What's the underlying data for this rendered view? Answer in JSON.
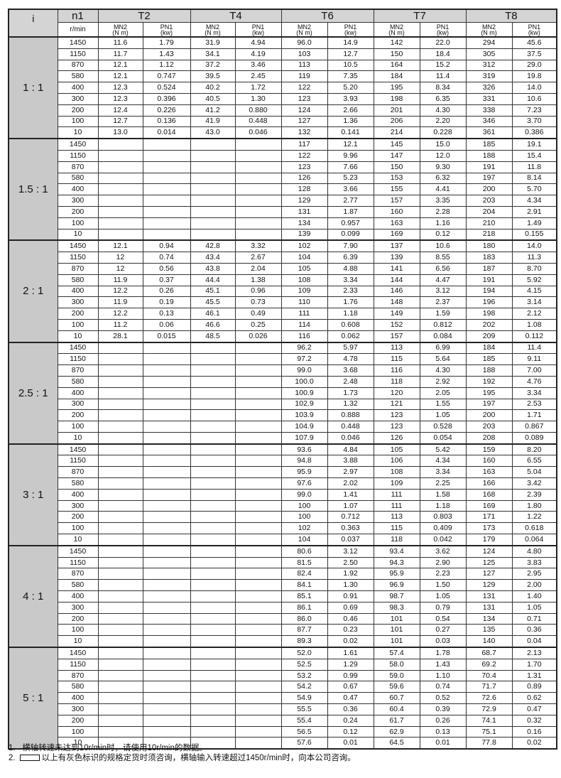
{
  "header": {
    "i_label": "i",
    "n1_label": "n1",
    "n1_unit": "r/min",
    "models": [
      "T2",
      "T4",
      "T6",
      "T7",
      "T8"
    ],
    "mn2_label": "MN2",
    "mn2_unit": "(N m)",
    "pn1_label": "PN1",
    "pn1_unit": "(kw)"
  },
  "speeds": [
    "1450",
    "1150",
    "870",
    "580",
    "400",
    "300",
    "200",
    "100",
    "10"
  ],
  "groups": [
    {
      "ratio": "1 : 1",
      "rows": [
        [
          "11.6",
          "1.79",
          "31.9",
          "4.94",
          "96.0",
          "14.9",
          "142",
          "22.0",
          "294",
          "45.6"
        ],
        [
          "11.7",
          "1.43",
          "34.1",
          "4.19",
          "103",
          "12.7",
          "150",
          "18.4",
          "305",
          "37.5"
        ],
        [
          "12.1",
          "1.12",
          "37.2",
          "3.46",
          "113",
          "10.5",
          "164",
          "15.2",
          "312",
          "29.0"
        ],
        [
          "12.1",
          "0.747",
          "39.5",
          "2.45",
          "119",
          "7.35",
          "184",
          "11.4",
          "319",
          "19.8"
        ],
        [
          "12.3",
          "0.524",
          "40.2",
          "1.72",
          "122",
          "5.20",
          "195",
          "8.34",
          "326",
          "14.0"
        ],
        [
          "12.3",
          "0.396",
          "40.5",
          "1.30",
          "123",
          "3.93",
          "198",
          "6.35",
          "331",
          "10.6"
        ],
        [
          "12.4",
          "0.226",
          "41.2",
          "0.880",
          "124",
          "2.66",
          "201",
          "4.30",
          "338",
          "7.23"
        ],
        [
          "12.7",
          "0.136",
          "41.9",
          "0.448",
          "127",
          "1.36",
          "206",
          "2.20",
          "346",
          "3.70"
        ],
        [
          "13.0",
          "0.014",
          "43.0",
          "0.046",
          "132",
          "0.141",
          "214",
          "0.228",
          "361",
          "0.386"
        ]
      ]
    },
    {
      "ratio": "1.5 : 1",
      "rows": [
        [
          "",
          "",
          "",
          "",
          "117",
          "12.1",
          "145",
          "15.0",
          "185",
          "19.1"
        ],
        [
          "",
          "",
          "",
          "",
          "122",
          "9.96",
          "147",
          "12.0",
          "188",
          "15.4"
        ],
        [
          "",
          "",
          "",
          "",
          "123",
          "7.66",
          "150",
          "9.30",
          "191",
          "11.8"
        ],
        [
          "",
          "",
          "",
          "",
          "126",
          "5.23",
          "153",
          "6.32",
          "197",
          "8.14"
        ],
        [
          "",
          "",
          "",
          "",
          "128",
          "3.66",
          "155",
          "4.41",
          "200",
          "5.70"
        ],
        [
          "",
          "",
          "",
          "",
          "129",
          "2.77",
          "157",
          "3.35",
          "203",
          "4.34"
        ],
        [
          "",
          "",
          "",
          "",
          "131",
          "1.87",
          "160",
          "2.28",
          "204",
          "2.91"
        ],
        [
          "",
          "",
          "",
          "",
          "134",
          "0.957",
          "163",
          "1.16",
          "210",
          "1.49"
        ],
        [
          "",
          "",
          "",
          "",
          "139",
          "0.099",
          "169",
          "0.12",
          "218",
          "0.155"
        ]
      ]
    },
    {
      "ratio": "2 : 1",
      "rows": [
        [
          "12.1",
          "0.94",
          "42.8",
          "3.32",
          "102",
          "7.90",
          "137",
          "10.6",
          "180",
          "14.0"
        ],
        [
          "12",
          "0.74",
          "43.4",
          "2.67",
          "104",
          "6.39",
          "139",
          "8.55",
          "183",
          "11.3"
        ],
        [
          "12",
          "0.56",
          "43.8",
          "2.04",
          "105",
          "4.88",
          "141",
          "6.56",
          "187",
          "8.70"
        ],
        [
          "11.9",
          "0.37",
          "44.4",
          "1.38",
          "108",
          "3.34",
          "144",
          "4.47",
          "191",
          "5.92"
        ],
        [
          "12.2",
          "0.26",
          "45.1",
          "0.96",
          "109",
          "2.33",
          "146",
          "3.12",
          "194",
          "4.15"
        ],
        [
          "11.9",
          "0.19",
          "45.5",
          "0.73",
          "110",
          "1.76",
          "148",
          "2.37",
          "196",
          "3.14"
        ],
        [
          "12.2",
          "0.13",
          "46.1",
          "0.49",
          "111",
          "1.18",
          "149",
          "1.59",
          "198",
          "2.12"
        ],
        [
          "11.2",
          "0.06",
          "46.6",
          "0.25",
          "114",
          "0.608",
          "152",
          "0.812",
          "202",
          "1.08"
        ],
        [
          "28.1",
          "0.015",
          "48.5",
          "0.026",
          "116",
          "0.062",
          "157",
          "0.084",
          "209",
          "0.112"
        ]
      ]
    },
    {
      "ratio": "2.5 : 1",
      "rows": [
        [
          "",
          "",
          "",
          "",
          "96.2",
          "5.97",
          "113",
          "6.99",
          "184",
          "11.4"
        ],
        [
          "",
          "",
          "",
          "",
          "97.2",
          "4.78",
          "115",
          "5.64",
          "185",
          "9.11"
        ],
        [
          "",
          "",
          "",
          "",
          "99.0",
          "3.68",
          "116",
          "4.30",
          "188",
          "7.00"
        ],
        [
          "",
          "",
          "",
          "",
          "100.0",
          "2.48",
          "118",
          "2.92",
          "192",
          "4.76"
        ],
        [
          "",
          "",
          "",
          "",
          "100.9",
          "1.73",
          "120",
          "2.05",
          "195",
          "3.34"
        ],
        [
          "",
          "",
          "",
          "",
          "102.9",
          "1.32",
          "121",
          "1.55",
          "197",
          "2.53"
        ],
        [
          "",
          "",
          "",
          "",
          "103.9",
          "0.888",
          "123",
          "1.05",
          "200",
          "1.71"
        ],
        [
          "",
          "",
          "",
          "",
          "104.9",
          "0.448",
          "123",
          "0.528",
          "203",
          "0.867"
        ],
        [
          "",
          "",
          "",
          "",
          "107.9",
          "0.046",
          "126",
          "0.054",
          "208",
          "0.089"
        ]
      ]
    },
    {
      "ratio": "3 : 1",
      "rows": [
        [
          "",
          "",
          "",
          "",
          "93.6",
          "4.84",
          "105",
          "5.42",
          "159",
          "8.20"
        ],
        [
          "",
          "",
          "",
          "",
          "94.8",
          "3.88",
          "106",
          "4.34",
          "160",
          "6.55"
        ],
        [
          "",
          "",
          "",
          "",
          "95.9",
          "2.97",
          "108",
          "3.34",
          "163",
          "5.04"
        ],
        [
          "",
          "",
          "",
          "",
          "97.6",
          "2.02",
          "109",
          "2.25",
          "166",
          "3.42"
        ],
        [
          "",
          "",
          "",
          "",
          "99.0",
          "1.41",
          "111",
          "1.58",
          "168",
          "2.39"
        ],
        [
          "",
          "",
          "",
          "",
          "100",
          "1.07",
          "111",
          "1.18",
          "169",
          "1.80"
        ],
        [
          "",
          "",
          "",
          "",
          "100",
          "0.712",
          "113",
          "0.803",
          "171",
          "1.22"
        ],
        [
          "",
          "",
          "",
          "",
          "102",
          "0.363",
          "115",
          "0.409",
          "173",
          "0.618"
        ],
        [
          "",
          "",
          "",
          "",
          "104",
          "0.037",
          "118",
          "0.042",
          "179",
          "0.064"
        ]
      ]
    },
    {
      "ratio": "4 : 1",
      "rows": [
        [
          "",
          "",
          "",
          "",
          "80.6",
          "3.12",
          "93.4",
          "3.62",
          "124",
          "4.80"
        ],
        [
          "",
          "",
          "",
          "",
          "81.5",
          "2.50",
          "94.3",
          "2.90",
          "125",
          "3.83"
        ],
        [
          "",
          "",
          "",
          "",
          "82.4",
          "1.92",
          "95.9",
          "2.23",
          "127",
          "2.95"
        ],
        [
          "",
          "",
          "",
          "",
          "84.1",
          "1.30",
          "96.9",
          "1.50",
          "129",
          "2.00"
        ],
        [
          "",
          "",
          "",
          "",
          "85.1",
          "0.91",
          "98.7",
          "1.05",
          "131",
          "1.40"
        ],
        [
          "",
          "",
          "",
          "",
          "86.1",
          "0.69",
          "98.3",
          "0.79",
          "131",
          "1.05"
        ],
        [
          "",
          "",
          "",
          "",
          "86.0",
          "0.46",
          "101",
          "0.54",
          "134",
          "0.71"
        ],
        [
          "",
          "",
          "",
          "",
          "87.7",
          "0.23",
          "101",
          "0.27",
          "135",
          "0.36"
        ],
        [
          "",
          "",
          "",
          "",
          "89.3",
          "0.02",
          "101",
          "0.03",
          "140",
          "0.04"
        ]
      ]
    },
    {
      "ratio": "5 : 1",
      "rows": [
        [
          "",
          "",
          "",
          "",
          "52.0",
          "1.61",
          "57.4",
          "1.78",
          "68.7",
          "2.13"
        ],
        [
          "",
          "",
          "",
          "",
          "52.5",
          "1.29",
          "58.0",
          "1.43",
          "69.2",
          "1.70"
        ],
        [
          "",
          "",
          "",
          "",
          "53.2",
          "0.99",
          "59.0",
          "1.10",
          "70.4",
          "1.31"
        ],
        [
          "",
          "",
          "",
          "",
          "54.2",
          "0.67",
          "59.6",
          "0.74",
          "71.7",
          "0.89"
        ],
        [
          "",
          "",
          "",
          "",
          "54.9",
          "0.47",
          "60.7",
          "0.52",
          "72.6",
          "0.62"
        ],
        [
          "",
          "",
          "",
          "",
          "55.5",
          "0.36",
          "60.4",
          "0.39",
          "72.9",
          "0.47"
        ],
        [
          "",
          "",
          "",
          "",
          "55.4",
          "0.24",
          "61.7",
          "0.26",
          "74.1",
          "0.32"
        ],
        [
          "",
          "",
          "",
          "",
          "56.5",
          "0.12",
          "62.9",
          "0.13",
          "75.1",
          "0.16"
        ],
        [
          "",
          "",
          "",
          "",
          "57.6",
          "0.01",
          "64.5",
          "0.01",
          "77.8",
          "0.02"
        ]
      ]
    }
  ],
  "notes": {
    "note1_num": "1.",
    "note1": "横轴转速未达到10r/min时，请使用10r/min的数据。",
    "note2_num": "2.",
    "note2": "以上有灰色标识的规格定货时须咨询，横轴输入转速超过1450r/min时，向本公司咨询。"
  },
  "colors": {
    "gray_cell": "#c9c9c9",
    "header_gray": "#d4d4d4"
  }
}
